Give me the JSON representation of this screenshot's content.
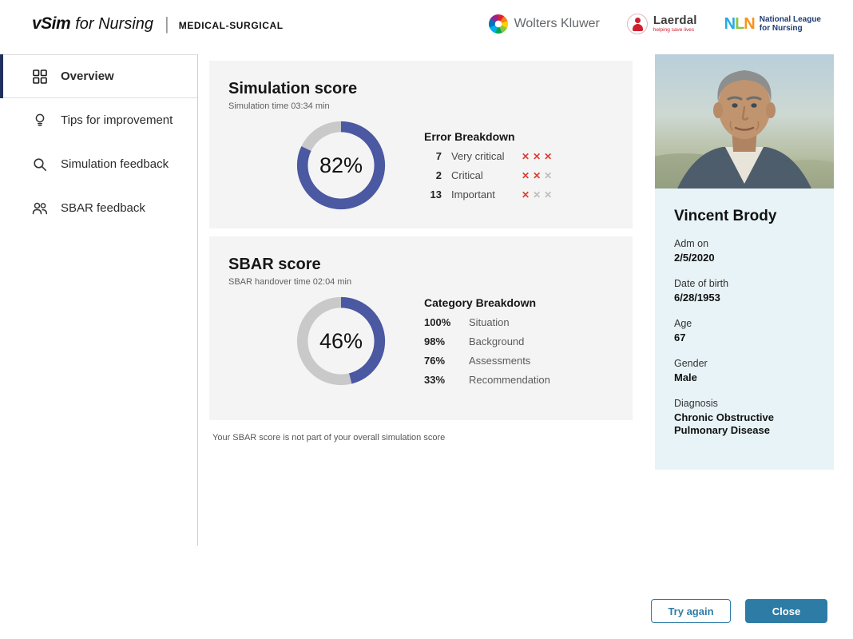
{
  "header": {
    "brand_main": "vSim",
    "brand_sub": "for Nursing",
    "brand_divider": "|",
    "brand_category": "MEDICAL-SURGICAL",
    "logo_wolters": "Wolters Kluwer",
    "logo_laerdal": "Laerdal",
    "logo_laerdal_tagline": "helping save lives",
    "nln_n1": "N",
    "nln_l": "L",
    "nln_n2": "N",
    "logo_nln_line1": "National League",
    "logo_nln_line2": "for Nursing"
  },
  "sidebar": {
    "items": [
      {
        "label": "Overview",
        "icon": "grid-icon",
        "active": true
      },
      {
        "label": "Tips for improvement",
        "icon": "lightbulb-icon",
        "active": false
      },
      {
        "label": "Simulation feedback",
        "icon": "magnifier-icon",
        "active": false
      },
      {
        "label": "SBAR feedback",
        "icon": "people-icon",
        "active": false
      }
    ]
  },
  "simulation_card": {
    "title": "Simulation score",
    "subtitle": "Simulation time 03:34 min",
    "score_label": "82%",
    "score_value": 82,
    "breakdown_title": "Error Breakdown",
    "rows": [
      {
        "count": "7",
        "label": "Very critical",
        "marks": [
          "red",
          "red",
          "red"
        ]
      },
      {
        "count": "2",
        "label": "Critical",
        "marks": [
          "red",
          "red",
          "gray"
        ]
      },
      {
        "count": "13",
        "label": "Important",
        "marks": [
          "red",
          "gray",
          "gray"
        ]
      }
    ]
  },
  "sbar_card": {
    "title": "SBAR score",
    "subtitle": "SBAR handover time 02:04 min",
    "score_label": "46%",
    "score_value": 46,
    "breakdown_title": "Category Breakdown",
    "rows": [
      {
        "percent": "100%",
        "label": "Situation"
      },
      {
        "percent": "98%",
        "label": "Background"
      },
      {
        "percent": "76%",
        "label": "Assessments"
      },
      {
        "percent": "33%",
        "label": "Recommendation"
      }
    ]
  },
  "note": "Your SBAR score is not part of your overall simulation score",
  "patient": {
    "name": "Vincent Brody",
    "fields": [
      {
        "label": "Adm on",
        "value": "2/5/2020"
      },
      {
        "label": "Date of birth",
        "value": "6/28/1953"
      },
      {
        "label": "Age",
        "value": "67"
      },
      {
        "label": "Gender",
        "value": "Male"
      },
      {
        "label": "Diagnosis",
        "value": "Chronic Obstructive Pulmonary Disease"
      }
    ]
  },
  "buttons": {
    "try_again": "Try again",
    "close": "Close"
  },
  "chart_data": [
    {
      "type": "donut",
      "title": "Simulation score",
      "value": 82,
      "max": 100,
      "value_label": "82%",
      "arc_color": "#4b58a2",
      "track_color": "#c9c9c9"
    },
    {
      "type": "donut",
      "title": "SBAR score",
      "value": 46,
      "max": 100,
      "value_label": "46%",
      "arc_color": "#4b58a2",
      "track_color": "#c9c9c9"
    }
  ],
  "colors": {
    "donut_blue": "#4b58a2",
    "donut_track": "#c9c9c9",
    "active_nav_bar": "#1f2f5e",
    "error_red": "#e03a2f",
    "mark_gray": "#bdbdbd",
    "button_teal": "#2d7ca6",
    "card_bg": "#f4f4f4",
    "patient_card_bg": "#e8f3f7"
  }
}
